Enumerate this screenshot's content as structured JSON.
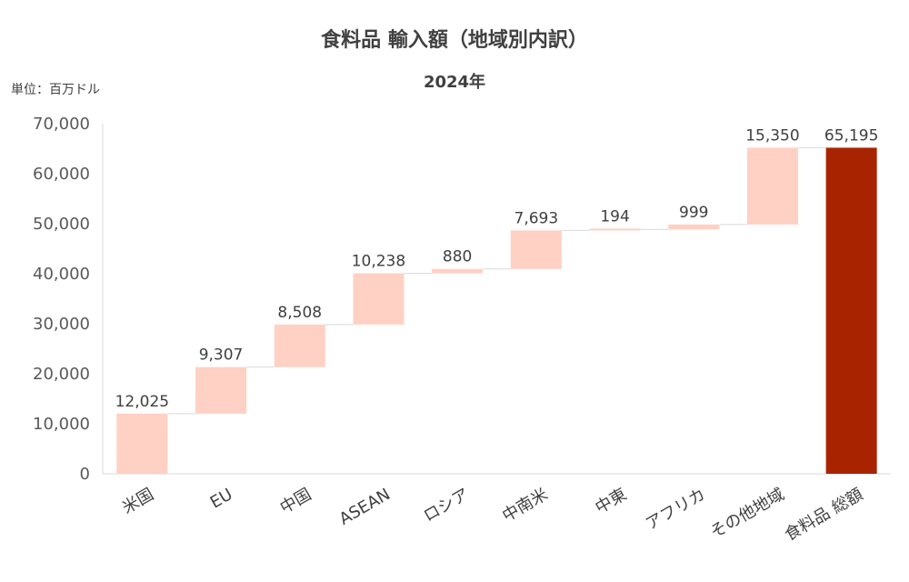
{
  "chart_data": {
    "type": "bar",
    "subtype": "waterfall",
    "title": "食料品 輸入額（地域別内訳）",
    "subtitle": "2024年",
    "unit_label": "単位：百万ドル",
    "categories": [
      "米国",
      "EU",
      "中国",
      "ASEAN",
      "ロシア",
      "中南米",
      "中東",
      "アフリカ",
      "その他地域",
      "食料品 総額"
    ],
    "values": [
      12025,
      9307,
      8508,
      10238,
      880,
      7693,
      194,
      999,
      15350,
      65195
    ],
    "value_labels": [
      "12,025",
      "9,307",
      "8,508",
      "10,238",
      "880",
      "7,693",
      "194",
      "999",
      "15,350",
      "65,195"
    ],
    "total_index": 9,
    "ylim": [
      0,
      70000
    ],
    "yticks": [
      0,
      10000,
      20000,
      30000,
      40000,
      50000,
      60000,
      70000
    ],
    "ytick_labels": [
      "0",
      "10,000",
      "20,000",
      "30,000",
      "40,000",
      "50,000",
      "60,000",
      "70,000"
    ],
    "grid": false,
    "legend": "none",
    "colors": {
      "increment": "#ffd0c4",
      "total": "#a82400",
      "connector": "#d9d9d9",
      "axis": "#d9d9d9"
    }
  }
}
